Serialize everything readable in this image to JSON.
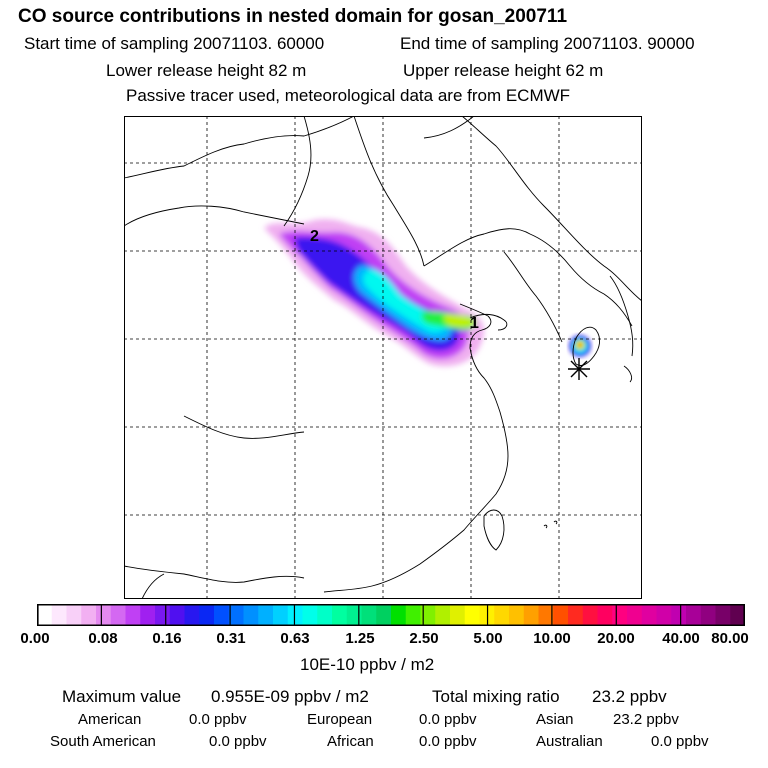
{
  "header": {
    "title": "CO  source contributions in nested domain for gosan_200711",
    "start_time": "Start time of sampling 20071103. 60000",
    "end_time": "End time of sampling 20071103. 90000",
    "lower_release": "Lower release height   82 m",
    "upper_release": "Upper release height   62 m",
    "info": "Passive tracer used, meteorological data are from ECMWF"
  },
  "map": {
    "contour_labels": [
      "2",
      "1"
    ],
    "station_marker": "asterisk-icon"
  },
  "colorbar": {
    "tick_labels": [
      "0.00",
      "0.08",
      "0.16",
      "0.31",
      "0.63",
      "1.25",
      "2.50",
      "5.00",
      "10.00",
      "20.00",
      "40.00",
      "80.00"
    ],
    "colors": [
      "#ffffff",
      "#fde8fd",
      "#f8d0f8",
      "#f2b0f2",
      "#e48af0",
      "#d468f2",
      "#c040f4",
      "#a020f0",
      "#7a18f0",
      "#5010f0",
      "#2818f0",
      "#0a28f4",
      "#0050ff",
      "#0070ff",
      "#0090ff",
      "#00b0ff",
      "#00d0ff",
      "#00f0ff",
      "#00ffea",
      "#00ffc8",
      "#00ffa0",
      "#00f090",
      "#00e07a",
      "#00d060",
      "#00e000",
      "#40f000",
      "#80f000",
      "#b0f000",
      "#e0f000",
      "#ffff00",
      "#fff000",
      "#ffd800",
      "#ffc000",
      "#ffa000",
      "#ff7800",
      "#ff5000",
      "#ff2a20",
      "#ff1040",
      "#ff0060",
      "#ff0080",
      "#f00090",
      "#e000a0",
      "#d000a8",
      "#c000b0",
      "#a80098",
      "#900080",
      "#780068",
      "#600050"
    ],
    "units": "10E-10 ppbv / m2"
  },
  "summary": {
    "max_label": "Maximum value",
    "max_value": "0.955E-09 ppbv / m2",
    "total_label": "Total mixing ratio",
    "total_value": "23.2 ppbv",
    "regions": [
      {
        "name": "American",
        "value": "0.0 ppbv"
      },
      {
        "name": "European",
        "value": "0.0 ppbv"
      },
      {
        "name": "Asian",
        "value": "23.2 ppbv"
      },
      {
        "name": "South American",
        "value": "0.0 ppbv"
      },
      {
        "name": "African",
        "value": "0.0 ppbv"
      },
      {
        "name": "Australian",
        "value": "0.0 ppbv"
      }
    ]
  }
}
